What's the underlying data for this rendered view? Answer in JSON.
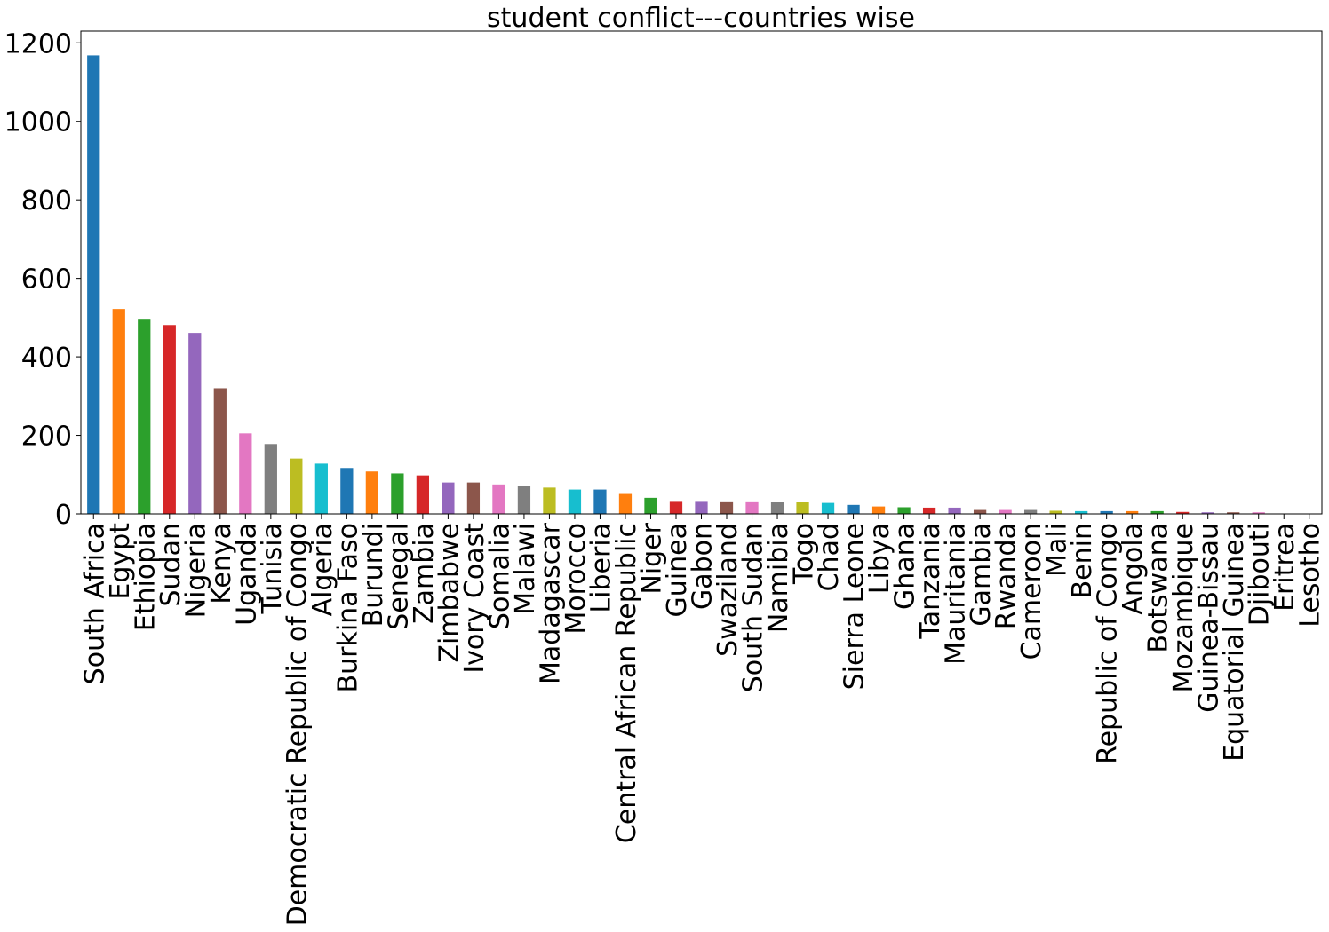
{
  "chart_data": {
    "type": "bar",
    "title": "student conflict---countries wise",
    "xlabel": "",
    "ylabel": "",
    "ylim": [
      0,
      1230
    ],
    "yticks": [
      0,
      200,
      400,
      600,
      800,
      1000,
      1200
    ],
    "grid": false,
    "legend": "none",
    "categories": [
      "South Africa",
      "Egypt",
      "Ethiopia",
      "Sudan",
      "Nigeria",
      "Kenya",
      "Uganda",
      "Tunisia",
      "Democratic Republic of Congo",
      "Algeria",
      "Burkina Faso",
      "Burundi",
      "Senegal",
      "Zambia",
      "Zimbabwe",
      "Ivory Coast",
      "Somalia",
      "Malawi",
      "Madagascar",
      "Morocco",
      "Liberia",
      "Central African Republic",
      "Niger",
      "Guinea",
      "Gabon",
      "Swaziland",
      "South Sudan",
      "Namibia",
      "Togo",
      "Chad",
      "Sierra Leone",
      "Libya",
      "Ghana",
      "Tanzania",
      "Mauritania",
      "Gambia",
      "Rwanda",
      "Cameroon",
      "Mali",
      "Benin",
      "Republic of Congo",
      "Angola",
      "Botswana",
      "Mozambique",
      "Guinea-Bissau",
      "Equatorial Guinea",
      "Djibouti",
      "Eritrea",
      "Lesotho"
    ],
    "values": [
      1168,
      522,
      497,
      481,
      461,
      320,
      205,
      178,
      141,
      128,
      117,
      108,
      103,
      98,
      80,
      80,
      75,
      71,
      67,
      62,
      62,
      53,
      41,
      33,
      33,
      32,
      32,
      30,
      30,
      28,
      23,
      19,
      17,
      16,
      16,
      10,
      10,
      10,
      8,
      7,
      7,
      7,
      7,
      5,
      4,
      4,
      4,
      1,
      1
    ],
    "colors": [
      "#1f77b4",
      "#ff7f0e",
      "#2ca02c",
      "#d62728",
      "#9467bd",
      "#8c564b",
      "#e377c2",
      "#7f7f7f",
      "#bcbd22",
      "#17becf"
    ]
  }
}
